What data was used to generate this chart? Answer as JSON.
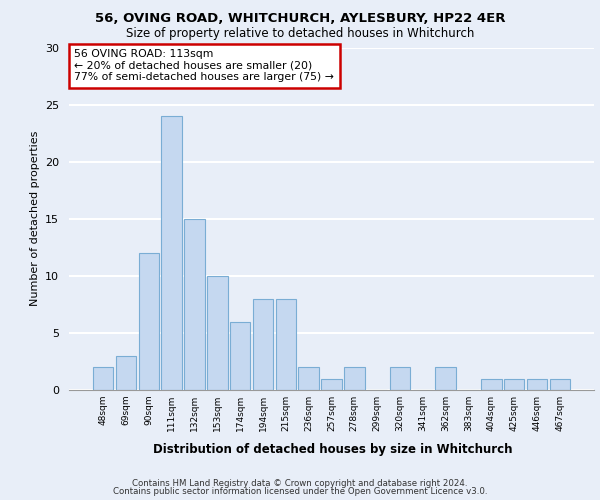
{
  "title1": "56, OVING ROAD, WHITCHURCH, AYLESBURY, HP22 4ER",
  "title2": "Size of property relative to detached houses in Whitchurch",
  "xlabel": "Distribution of detached houses by size in Whitchurch",
  "ylabel": "Number of detached properties",
  "categories": [
    "48sqm",
    "69sqm",
    "90sqm",
    "111sqm",
    "132sqm",
    "153sqm",
    "174sqm",
    "194sqm",
    "215sqm",
    "236sqm",
    "257sqm",
    "278sqm",
    "299sqm",
    "320sqm",
    "341sqm",
    "362sqm",
    "383sqm",
    "404sqm",
    "425sqm",
    "446sqm",
    "467sqm"
  ],
  "values": [
    2,
    3,
    12,
    24,
    15,
    10,
    6,
    8,
    8,
    2,
    1,
    2,
    0,
    2,
    0,
    2,
    0,
    1,
    1,
    1,
    1
  ],
  "bar_color": "#c5d8f0",
  "bar_edge_color": "#7aadd4",
  "annotation_text_line1": "56 OVING ROAD: 113sqm",
  "annotation_text_line2": "← 20% of detached houses are smaller (20)",
  "annotation_text_line3": "77% of semi-detached houses are larger (75) →",
  "annotation_box_facecolor": "#ffffff",
  "annotation_box_edgecolor": "#cc0000",
  "ylim": [
    0,
    30
  ],
  "yticks": [
    0,
    5,
    10,
    15,
    20,
    25,
    30
  ],
  "background_color": "#e8eef8",
  "grid_color": "#ffffff",
  "footer_line1": "Contains HM Land Registry data © Crown copyright and database right 2024.",
  "footer_line2": "Contains public sector information licensed under the Open Government Licence v3.0."
}
